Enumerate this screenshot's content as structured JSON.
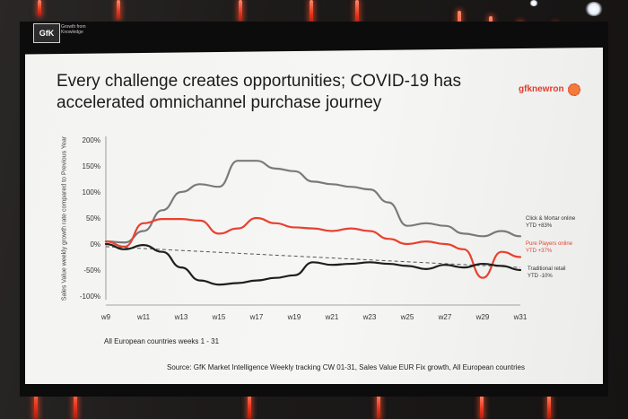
{
  "header": {
    "logo_text": "GfK",
    "logo_tagline": "Growth from Knowledge",
    "title": "Every challenge creates opportunities; COVID-19 has accelerated omnichannel purchase journey",
    "brand": "gfknewron"
  },
  "footer": {
    "note": "All European countries weeks 1 - 31",
    "source": "Source: GfK Market Intelligence Weekly tracking CW 01-31, Sales Value EUR Fix growth, All European countries"
  },
  "chart_data": {
    "type": "line",
    "title": "Every challenge creates opportunities; COVID-19 has accelerated omnichannel purchase journey",
    "xlabel": "",
    "ylabel": "Sales Value weekly growth rate compared to Previous Year",
    "ylim": [
      -100,
      200
    ],
    "xlim": [
      9,
      31
    ],
    "y_ticks": [
      "-100%",
      "-50%",
      "0%",
      "50%",
      "100%",
      "150%",
      "200%"
    ],
    "y_tick_values": [
      -100,
      -50,
      0,
      50,
      100,
      150,
      200
    ],
    "x_ticks": [
      "w9",
      "w11",
      "w13",
      "w15",
      "w17",
      "w19",
      "w21",
      "w23",
      "w25",
      "w27",
      "w29",
      "w31"
    ],
    "x_tick_values": [
      9,
      11,
      13,
      15,
      17,
      19,
      21,
      23,
      25,
      27,
      29,
      31
    ],
    "grid": false,
    "series": [
      {
        "name": "Click & Mortar online",
        "legend_detail": "YTD +83%",
        "color": "#7a7a7a",
        "x": [
          9,
          10,
          11,
          12,
          13,
          14,
          15,
          16,
          17,
          18,
          19,
          20,
          21,
          22,
          23,
          24,
          25,
          26,
          27,
          28,
          29,
          30,
          31
        ],
        "y": [
          5,
          3,
          25,
          65,
          100,
          115,
          110,
          160,
          160,
          145,
          140,
          120,
          115,
          110,
          105,
          80,
          35,
          40,
          35,
          20,
          15,
          25,
          15
        ]
      },
      {
        "name": "Pure Players online",
        "legend_detail": "YTD +37%",
        "color": "#e8412f",
        "x": [
          9,
          10,
          11,
          12,
          13,
          14,
          15,
          16,
          17,
          18,
          19,
          20,
          21,
          22,
          23,
          24,
          25,
          26,
          27,
          28,
          29,
          30,
          31
        ],
        "y": [
          5,
          -5,
          40,
          48,
          48,
          45,
          20,
          30,
          50,
          40,
          32,
          30,
          25,
          30,
          25,
          10,
          0,
          5,
          0,
          -10,
          -65,
          -15,
          -25
        ]
      },
      {
        "name": "Traditional retail",
        "legend_detail": "YTD -10%",
        "color": "#1e1e1e",
        "x": [
          9,
          10,
          11,
          12,
          13,
          14,
          15,
          16,
          17,
          18,
          19,
          20,
          21,
          22,
          23,
          24,
          25,
          26,
          27,
          28,
          29,
          30,
          31
        ],
        "y": [
          0,
          -10,
          -2,
          -15,
          -45,
          -70,
          -78,
          -75,
          -70,
          -65,
          -60,
          -35,
          -40,
          -38,
          -35,
          -38,
          -42,
          -48,
          -40,
          -45,
          -38,
          -42,
          -50
        ]
      }
    ],
    "trend_line": {
      "x": [
        9,
        31
      ],
      "y": [
        -5,
        -45
      ],
      "style": "dashed",
      "color": "#555555"
    }
  },
  "colors": {
    "brand": "#e23b2b",
    "screen": "#f4f4f2"
  }
}
